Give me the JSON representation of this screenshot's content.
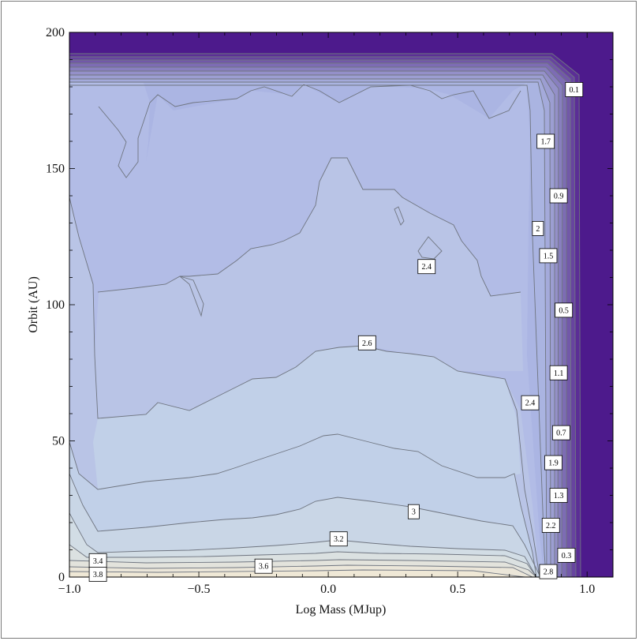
{
  "chart_data": {
    "type": "contour",
    "xlabel": "Log Mass (MJup)",
    "ylabel": "Orbit (AU)",
    "xlim": [
      -1.0,
      1.1
    ],
    "ylim": [
      0,
      200
    ],
    "x_ticks": [
      {
        "value": -1.0,
        "label": "−1.0"
      },
      {
        "value": -0.5,
        "label": "−0.5"
      },
      {
        "value": 0.0,
        "label": "0.0"
      },
      {
        "value": 0.5,
        "label": "0.5"
      },
      {
        "value": 1.0,
        "label": "1.0"
      }
    ],
    "y_ticks": [
      {
        "value": 0,
        "label": "0"
      },
      {
        "value": 50,
        "label": "50"
      },
      {
        "value": 100,
        "label": "100"
      },
      {
        "value": 150,
        "label": "150"
      },
      {
        "value": 200,
        "label": "200"
      }
    ],
    "color_scale": {
      "low": "#4b1a8c",
      "mid": "#b3bfe6",
      "high": "#eee8da"
    },
    "contour_labels": [
      {
        "text": "0.1",
        "x": 0.95,
        "y": 179
      },
      {
        "text": "1.7",
        "x": 0.84,
        "y": 160
      },
      {
        "text": "0.9",
        "x": 0.89,
        "y": 140
      },
      {
        "text": "2",
        "x": 0.81,
        "y": 128
      },
      {
        "text": "1.5",
        "x": 0.85,
        "y": 118
      },
      {
        "text": "2.4",
        "x": 0.38,
        "y": 114
      },
      {
        "text": "0.5",
        "x": 0.91,
        "y": 98
      },
      {
        "text": "2.6",
        "x": 0.15,
        "y": 86
      },
      {
        "text": "1.1",
        "x": 0.89,
        "y": 75
      },
      {
        "text": "2.4",
        "x": 0.78,
        "y": 64
      },
      {
        "text": "0.7",
        "x": 0.9,
        "y": 53
      },
      {
        "text": "1.9",
        "x": 0.87,
        "y": 42
      },
      {
        "text": "1.3",
        "x": 0.89,
        "y": 30
      },
      {
        "text": "3",
        "x": 0.33,
        "y": 24
      },
      {
        "text": "2.2",
        "x": 0.86,
        "y": 19
      },
      {
        "text": "3.2",
        "x": 0.04,
        "y": 14
      },
      {
        "text": "0.3",
        "x": 0.92,
        "y": 8
      },
      {
        "text": "3.4",
        "x": -0.89,
        "y": 6
      },
      {
        "text": "3.6",
        "x": -0.25,
        "y": 4
      },
      {
        "text": "2.8",
        "x": 0.85,
        "y": 2
      },
      {
        "text": "3.8",
        "x": -0.89,
        "y": 1
      }
    ]
  }
}
